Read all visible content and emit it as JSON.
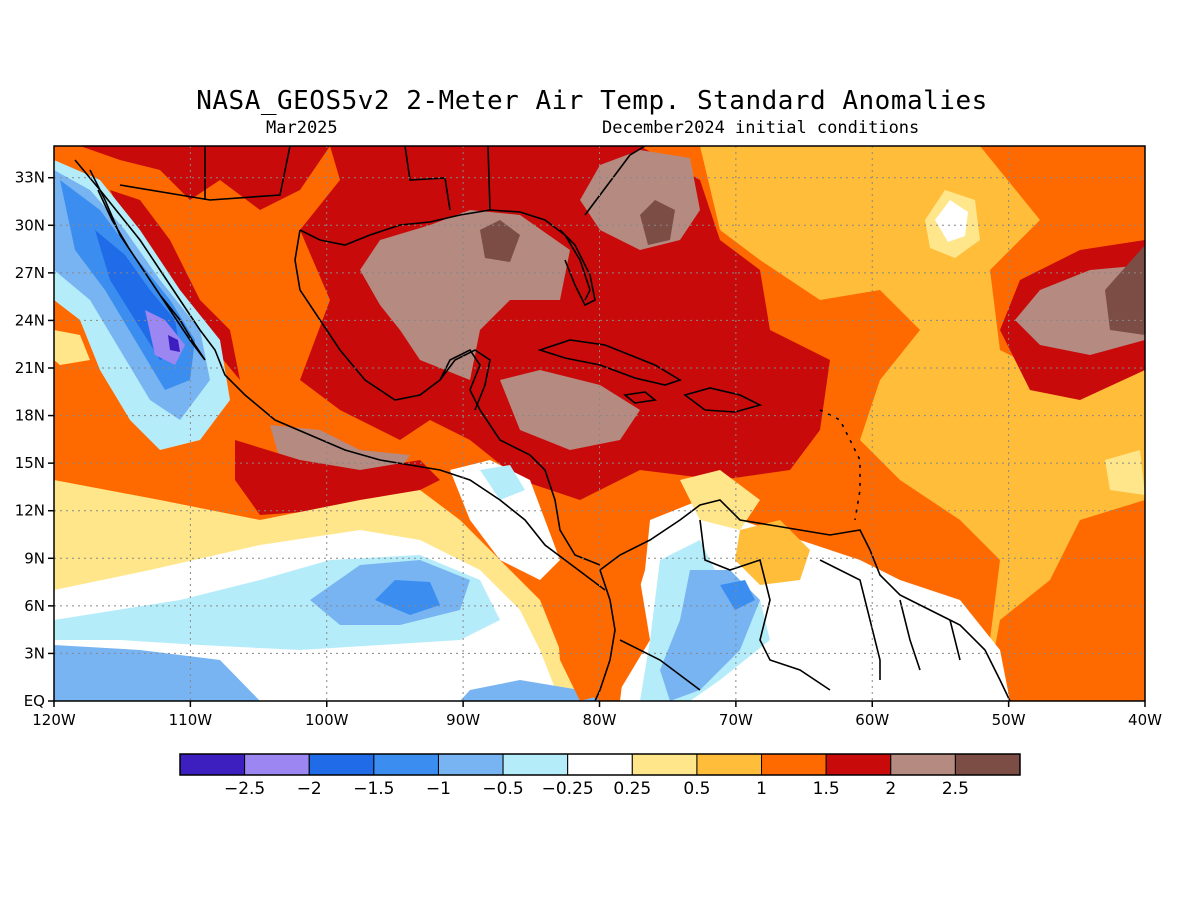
{
  "title": "NASA_GEOS5v2 2-Meter Air Temp. Standard Anomalies",
  "subtitle_left": "Mar2025",
  "subtitle_right": "December2024 initial conditions",
  "map": {
    "lon_range": [
      -120,
      -40
    ],
    "lat_range": [
      0,
      35
    ],
    "lon_ticks": [
      {
        "value": -120,
        "label": "120W"
      },
      {
        "value": -110,
        "label": "110W"
      },
      {
        "value": -100,
        "label": "100W"
      },
      {
        "value": -90,
        "label": "90W"
      },
      {
        "value": -80,
        "label": "80W"
      },
      {
        "value": -70,
        "label": "70W"
      },
      {
        "value": -60,
        "label": "60W"
      },
      {
        "value": -50,
        "label": "50W"
      },
      {
        "value": -40,
        "label": "40W"
      }
    ],
    "lat_ticks": [
      {
        "value": 0,
        "label": "EQ"
      },
      {
        "value": 3,
        "label": "3N"
      },
      {
        "value": 6,
        "label": "6N"
      },
      {
        "value": 9,
        "label": "9N"
      },
      {
        "value": 12,
        "label": "12N"
      },
      {
        "value": 15,
        "label": "15N"
      },
      {
        "value": 18,
        "label": "18N"
      },
      {
        "value": 21,
        "label": "21N"
      },
      {
        "value": 24,
        "label": "24N"
      },
      {
        "value": 27,
        "label": "27N"
      },
      {
        "value": 30,
        "label": "30N"
      },
      {
        "value": 33,
        "label": "33N"
      }
    ],
    "gridlines": true
  },
  "colorbar": {
    "colors": [
      "#3d1fbf",
      "#9b86f2",
      "#1f6be8",
      "#3b8ef0",
      "#78b4f2",
      "#b5ecfa",
      "#ffffff",
      "#ffe68a",
      "#ffbd3a",
      "#ff6a00",
      "#c80a0a",
      "#b58a80",
      "#7b4d44"
    ],
    "labels": [
      "−2.5",
      "−2",
      "−1.5",
      "−1",
      "−0.5",
      "−0.25",
      "0.25",
      "0.5",
      "1",
      "1.5",
      "2",
      "2.5"
    ]
  }
}
